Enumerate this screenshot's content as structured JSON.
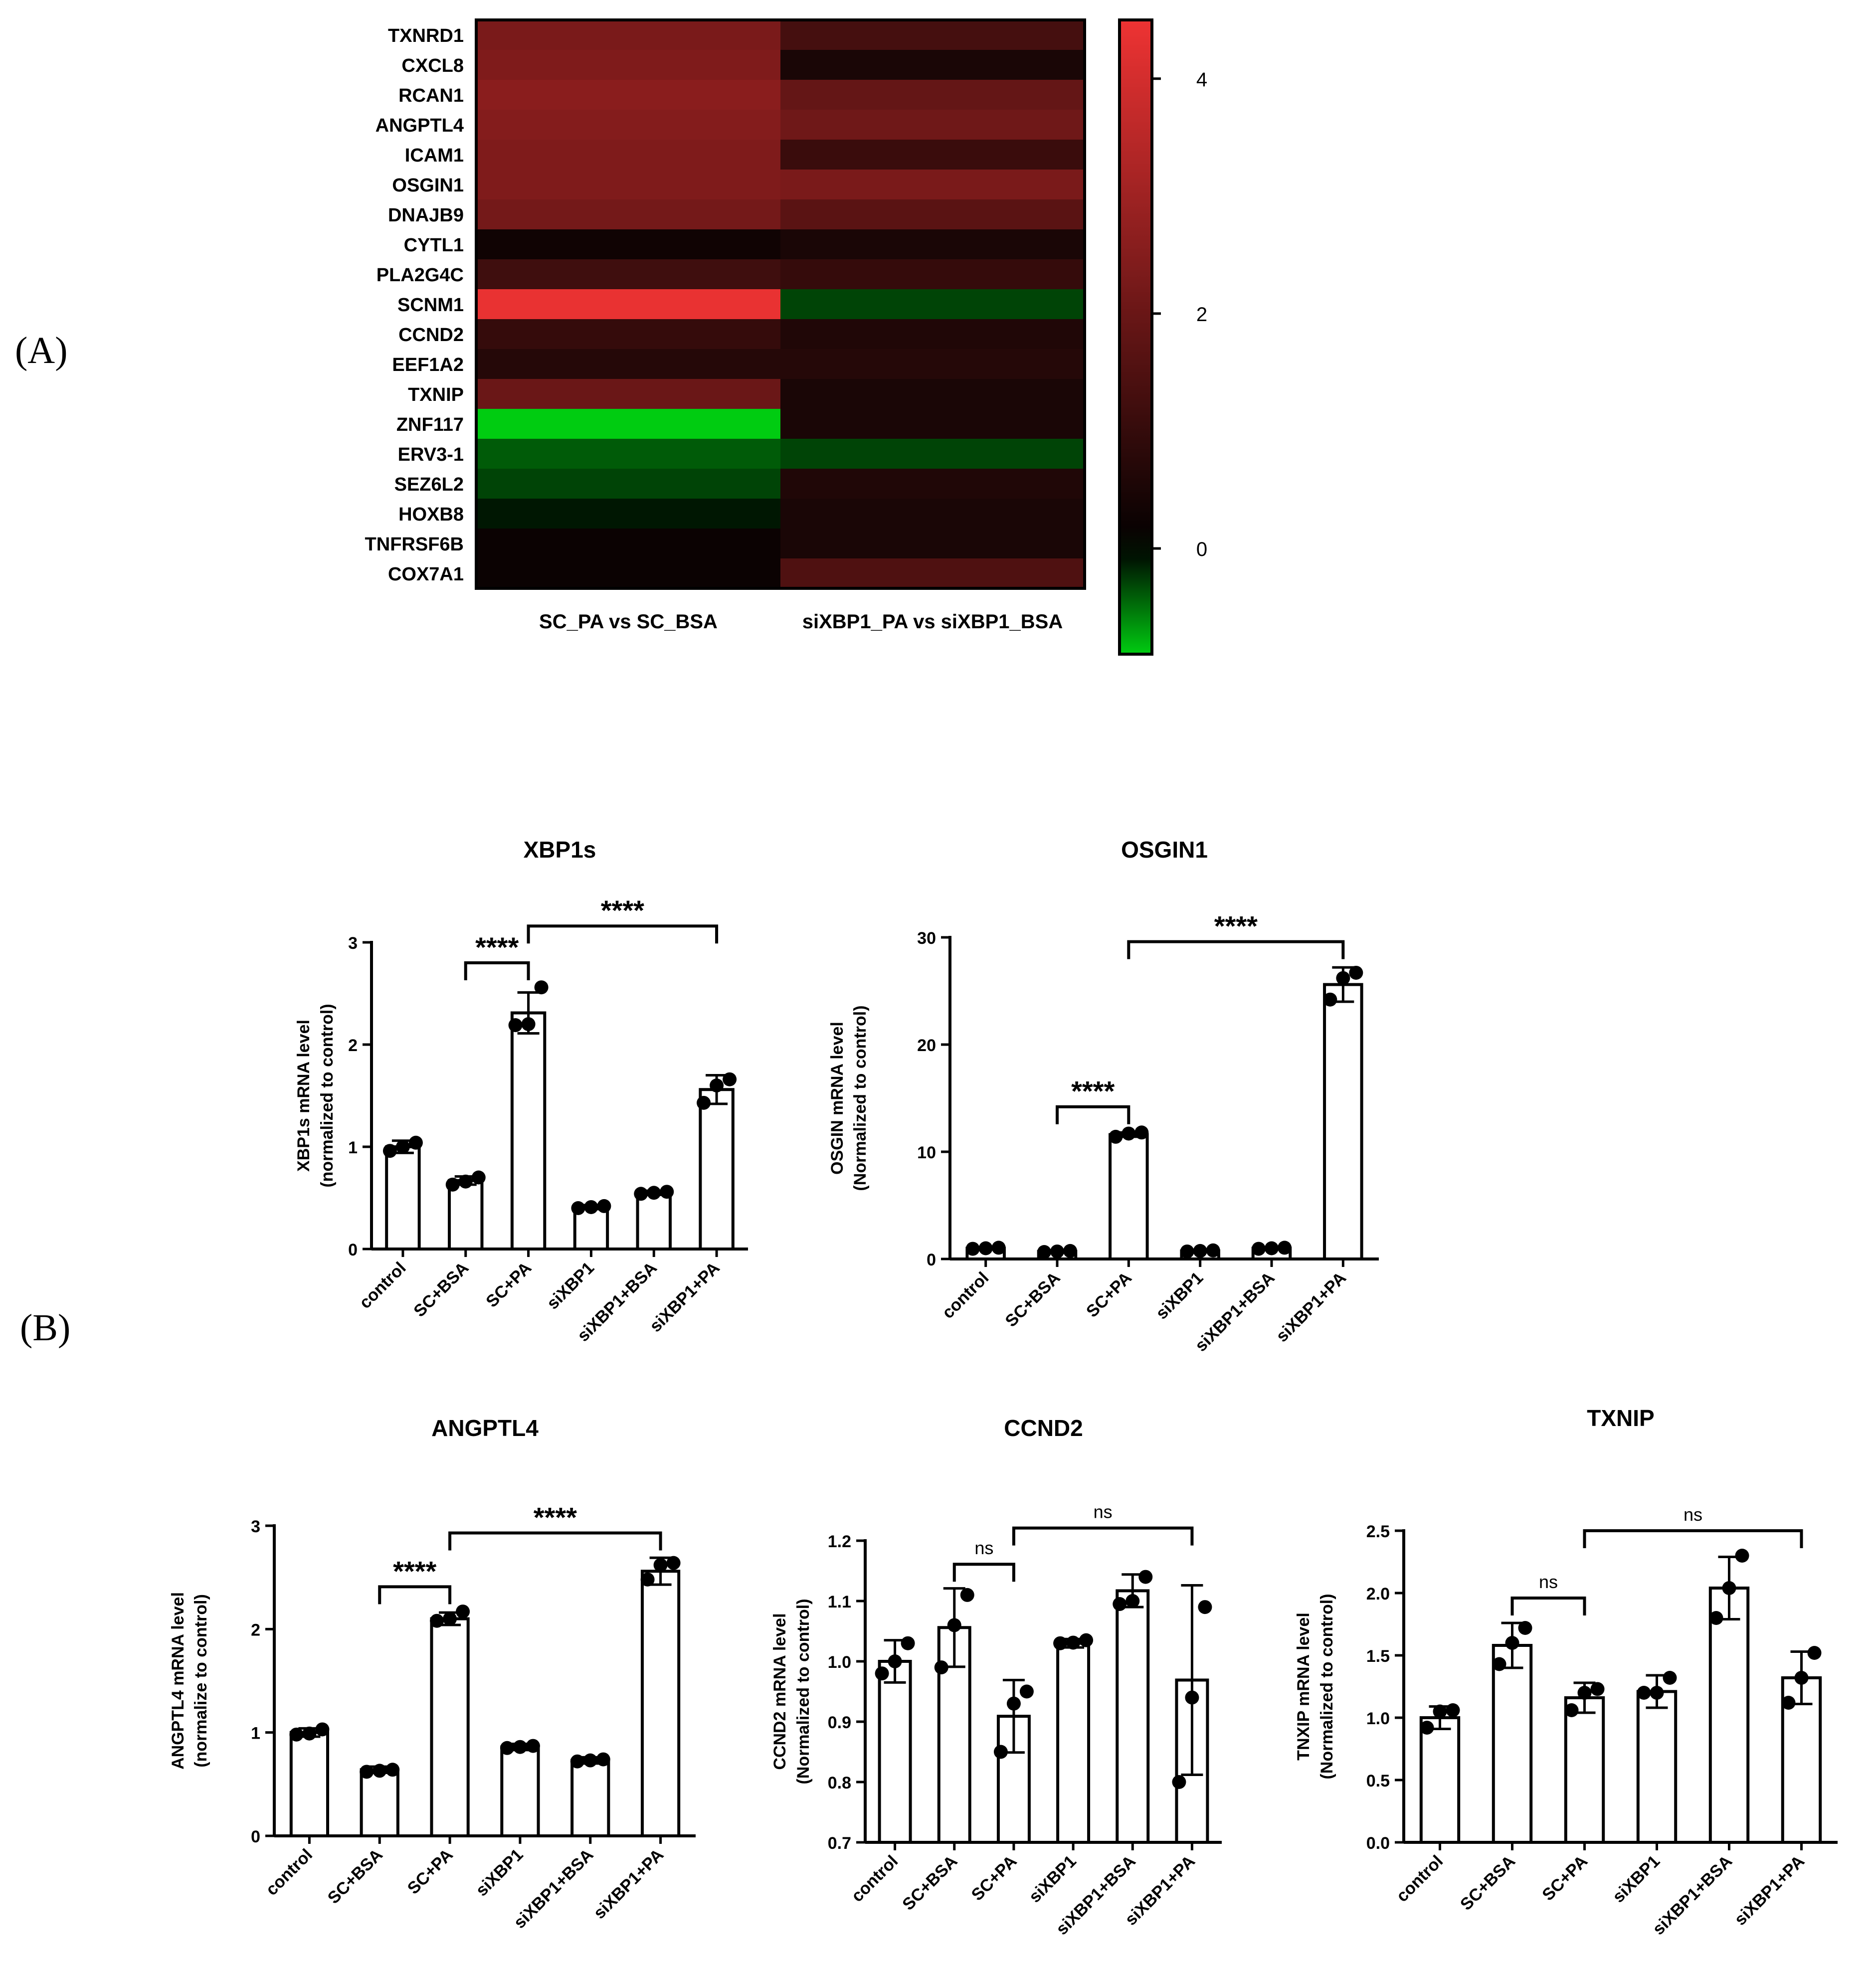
{
  "panel_labels": {
    "a": "(A)",
    "b": "(B)"
  },
  "colors": {
    "high": "#ee3333",
    "mid": "#000000",
    "low": "#00cc11"
  },
  "chart_data": [
    {
      "id": "heatmap",
      "type": "heatmap",
      "title": "",
      "rows": [
        "TXNRD1",
        "CXCL8",
        "RCAN1",
        "ANGPTL4",
        "ICAM1",
        "OSGIN1",
        "DNAJB9",
        "CYTL1",
        "PLA2G4C",
        "SCNM1",
        "CCND2",
        "EEF1A2",
        "TXNIP",
        "ZNF117",
        "ERV3-1",
        "SEZ6L2",
        "HOXB8",
        "TNFRSF6B",
        "COX7A1"
      ],
      "columns": [
        "SC_PA vs SC_BSA",
        "siXBP1_PA vs siXBP1_BSA"
      ],
      "values": [
        [
          2.3,
          1.3
        ],
        [
          2.4,
          0.5
        ],
        [
          2.6,
          1.9
        ],
        [
          2.5,
          2.1
        ],
        [
          2.4,
          1.1
        ],
        [
          2.4,
          2.3
        ],
        [
          2.2,
          1.7
        ],
        [
          0.3,
          0.5
        ],
        [
          1.2,
          1.0
        ],
        [
          4.4,
          -0.3
        ],
        [
          1.0,
          0.6
        ],
        [
          0.7,
          0.7
        ],
        [
          2.0,
          0.5
        ],
        [
          -0.95,
          0.5
        ],
        [
          -0.4,
          -0.3
        ],
        [
          -0.3,
          0.6
        ],
        [
          -0.1,
          0.5
        ],
        [
          0.2,
          0.5
        ],
        [
          0.2,
          1.5
        ]
      ],
      "colorbar": {
        "min": -0.9,
        "max": 4.5,
        "ticks": [
          "4",
          "2",
          "0"
        ],
        "tick_values": [
          4,
          2,
          0
        ]
      }
    },
    {
      "id": "xbp1s",
      "type": "bar",
      "title": "XBP1s",
      "ylabel_line1": "XBP1s mRNA level",
      "ylabel_line2": "(normalized to control)",
      "categories": [
        "control",
        "SC+BSA",
        "SC+PA",
        "siXBP1",
        "siXBP1+BSA",
        "siXBP1+PA"
      ],
      "values": [
        1.0,
        0.67,
        2.31,
        0.41,
        0.55,
        1.56
      ],
      "errors": [
        0.06,
        0.04,
        0.2,
        0.02,
        0.02,
        0.14
      ],
      "points": [
        [
          0.96,
          1.0,
          1.04
        ],
        [
          0.63,
          0.66,
          0.7
        ],
        [
          2.19,
          2.2,
          2.56
        ],
        [
          0.4,
          0.41,
          0.42
        ],
        [
          0.54,
          0.55,
          0.56
        ],
        [
          1.43,
          1.6,
          1.66
        ]
      ],
      "ylim": [
        0,
        3
      ],
      "yticks": [
        "0",
        "1",
        "2",
        "3"
      ],
      "ytick_values": [
        0,
        1,
        2,
        3
      ],
      "comparisons": [
        {
          "from": 1,
          "to": 2,
          "label": "****"
        },
        {
          "from": 2,
          "to": 5,
          "label": "****"
        }
      ]
    },
    {
      "id": "osgin1",
      "type": "bar",
      "title": "OSGIN1",
      "ylabel_line1": "OSGIN mRNA level",
      "ylabel_line2": "(Normalized to control)",
      "categories": [
        "control",
        "SC+BSA",
        "SC+PA",
        "siXBP1",
        "siXBP1+BSA",
        "siXBP1+PA"
      ],
      "values": [
        1.0,
        0.7,
        11.6,
        0.75,
        1.0,
        25.6
      ],
      "errors": [
        0.1,
        0.1,
        0.2,
        0.1,
        0.1,
        1.6
      ],
      "points": [
        [
          0.95,
          1.0,
          1.05
        ],
        [
          0.65,
          0.7,
          0.75
        ],
        [
          11.4,
          11.7,
          11.8
        ],
        [
          0.7,
          0.75,
          0.8
        ],
        [
          0.95,
          1.0,
          1.05
        ],
        [
          24.2,
          26.2,
          26.7
        ]
      ],
      "ylim": [
        0,
        30
      ],
      "yticks": [
        "0",
        "10",
        "20",
        "30"
      ],
      "ytick_values": [
        0,
        10,
        20,
        30
      ],
      "comparisons": [
        {
          "from": 1,
          "to": 2,
          "label": "****"
        },
        {
          "from": 2,
          "to": 5,
          "label": "****"
        }
      ]
    },
    {
      "id": "angptl4",
      "type": "bar",
      "title": "ANGPTL4",
      "ylabel_line1": "ANGPTL4 mRNA level",
      "ylabel_line2": "(normalize to control)",
      "categories": [
        "control",
        "SC+BSA",
        "SC+PA",
        "siXBP1",
        "siXBP1+BSA",
        "siXBP1+PA"
      ],
      "values": [
        1.0,
        0.64,
        2.1,
        0.86,
        0.73,
        2.56
      ],
      "errors": [
        0.04,
        0.03,
        0.06,
        0.03,
        0.03,
        0.13
      ],
      "points": [
        [
          0.98,
          0.99,
          1.03
        ],
        [
          0.62,
          0.63,
          0.64
        ],
        [
          2.08,
          2.1,
          2.17
        ],
        [
          0.85,
          0.86,
          0.87
        ],
        [
          0.72,
          0.73,
          0.74
        ],
        [
          2.48,
          2.62,
          2.64
        ]
      ],
      "ylim": [
        0,
        3
      ],
      "yticks": [
        "0",
        "1",
        "2",
        "3"
      ],
      "ytick_values": [
        0,
        1,
        2,
        3
      ],
      "comparisons": [
        {
          "from": 1,
          "to": 2,
          "label": "****"
        },
        {
          "from": 2,
          "to": 5,
          "label": "****"
        }
      ]
    },
    {
      "id": "ccnd2",
      "type": "bar",
      "title": "CCND2",
      "ylabel_line1": "CCND2 mRNA level",
      "ylabel_line2": "(Normalized to control)",
      "categories": [
        "control",
        "SC+BSA",
        "SC+PA",
        "siXBP1",
        "siXBP1+BSA",
        "siXBP1+PA"
      ],
      "values": [
        1.0,
        1.056,
        0.909,
        1.03,
        1.117,
        0.969
      ],
      "errors": [
        0.035,
        0.065,
        0.06,
        0.007,
        0.027,
        0.157
      ],
      "points": [
        [
          0.98,
          1.0,
          1.03
        ],
        [
          0.99,
          1.06,
          1.11
        ],
        [
          0.85,
          0.93,
          0.95
        ],
        [
          1.03,
          1.031,
          1.035
        ],
        [
          1.095,
          1.1,
          1.14
        ],
        [
          0.8,
          0.94,
          1.09
        ]
      ],
      "ylim": [
        0.7,
        1.2
      ],
      "yticks": [
        "0.7",
        "0.8",
        "0.9",
        "1.0",
        "1.1",
        "1.2"
      ],
      "ytick_values": [
        0.7,
        0.8,
        0.9,
        1.0,
        1.1,
        1.2
      ],
      "comparisons": [
        {
          "from": 1,
          "to": 2,
          "label": "ns"
        },
        {
          "from": 2,
          "to": 5,
          "label": "ns"
        }
      ]
    },
    {
      "id": "txnip",
      "type": "bar",
      "title": "TXNIP",
      "ylabel_line1": "TNXIP mRNA level",
      "ylabel_line2": "(Normalized to control)",
      "categories": [
        "control",
        "SC+BSA",
        "SC+PA",
        "siXBP1",
        "siXBP1+BSA",
        "siXBP1+PA"
      ],
      "values": [
        1.0,
        1.58,
        1.16,
        1.21,
        2.04,
        1.32
      ],
      "errors": [
        0.09,
        0.18,
        0.12,
        0.13,
        0.25,
        0.21
      ],
      "points": [
        [
          0.92,
          1.05,
          1.06
        ],
        [
          1.43,
          1.6,
          1.72
        ],
        [
          1.06,
          1.2,
          1.23
        ],
        [
          1.2,
          1.2,
          1.32
        ],
        [
          1.8,
          2.04,
          2.3
        ],
        [
          1.12,
          1.32,
          1.52
        ]
      ],
      "ylim": [
        0,
        2.5
      ],
      "yticks": [
        "0.0",
        "0.5",
        "1.0",
        "1.5",
        "2.0",
        "2.5"
      ],
      "ytick_values": [
        0,
        0.5,
        1.0,
        1.5,
        2.0,
        2.5
      ],
      "comparisons": [
        {
          "from": 1,
          "to": 2,
          "label": "ns"
        },
        {
          "from": 2,
          "to": 5,
          "label": "ns"
        }
      ]
    }
  ]
}
